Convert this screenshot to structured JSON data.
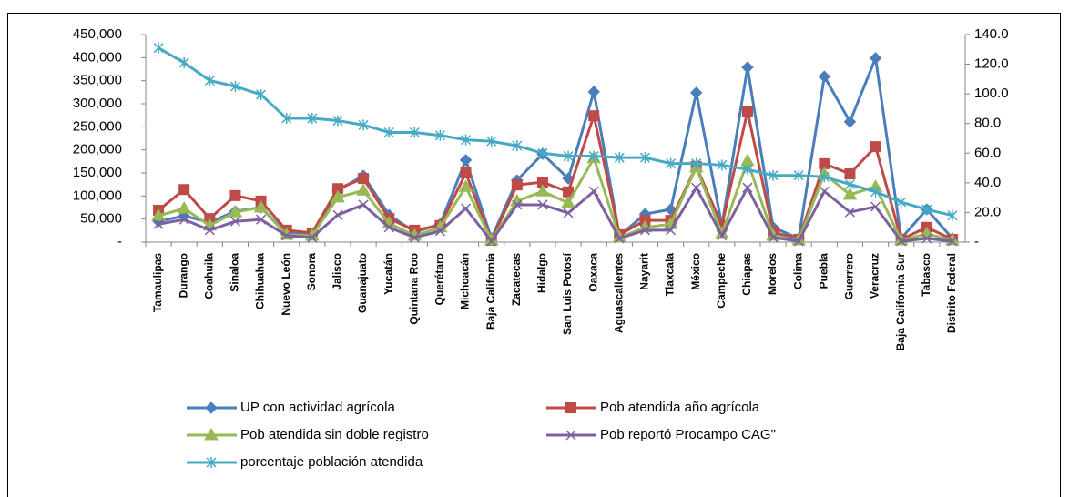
{
  "chart_data": {
    "type": "line",
    "categories": [
      "Tamaulipas",
      "Durango",
      "Coahuila",
      "Sinaloa",
      "Chihuahua",
      "Nuevo León",
      "Sonora",
      "Jalisco",
      "Guanajuato",
      "Yucatán",
      "Quintana Roo",
      "Querétaro",
      "Michoacán",
      "Baja California",
      "Zacatecas",
      "Hidalgo",
      "San Luis Potosí",
      "Oaxaca",
      "Aguascalientes",
      "Nayarit",
      "Tlaxcala",
      "México",
      "Campeche",
      "Chiapas",
      "Morelos",
      "Colima",
      "Puebla",
      "Guerrero",
      "Veracruz",
      "Baja California Sur",
      "Tabasco",
      "Distrito Federal"
    ],
    "series": [
      {
        "name": "UP con actividad agrícola",
        "color": "#4a7ebb",
        "marker": "diamond",
        "values": [
          45000,
          57000,
          43000,
          67000,
          75000,
          20000,
          16000,
          112000,
          144000,
          59000,
          22000,
          39000,
          178000,
          8000,
          134000,
          191000,
          138000,
          326000,
          14000,
          61000,
          71000,
          324000,
          36000,
          379000,
          32000,
          8000,
          359000,
          261000,
          399000,
          8000,
          71000,
          8000
        ]
      },
      {
        "name": "Pob atendida año agrícola",
        "color": "#be4b48",
        "marker": "square",
        "values": [
          69000,
          114000,
          51000,
          101000,
          89000,
          26000,
          20000,
          116000,
          138000,
          51000,
          26000,
          36000,
          150000,
          4000,
          124000,
          130000,
          109000,
          274000,
          16000,
          47000,
          47000,
          164000,
          36000,
          284000,
          22000,
          6000,
          170000,
          148000,
          207000,
          6000,
          32000,
          6000
        ]
      },
      {
        "name": "Pob atendida sin doble registro",
        "color": "#98b954",
        "marker": "triangle",
        "values": [
          57000,
          73000,
          36000,
          65000,
          75000,
          16000,
          14000,
          97000,
          112000,
          41000,
          14000,
          32000,
          120000,
          4000,
          89000,
          110000,
          85000,
          182000,
          10000,
          32000,
          39000,
          162000,
          18000,
          176000,
          14000,
          4000,
          148000,
          103000,
          120000,
          4000,
          18000,
          4000
        ]
      },
      {
        "name": "Pob reportó Procampo CAG\"",
        "color": "#7d60a0",
        "marker": "x",
        "values": [
          39000,
          49000,
          26000,
          45000,
          49000,
          14000,
          10000,
          59000,
          81000,
          32000,
          10000,
          24000,
          73000,
          2000,
          81000,
          81000,
          63000,
          110000,
          8000,
          26000,
          26000,
          118000,
          14000,
          118000,
          10000,
          2000,
          110000,
          65000,
          77000,
          2000,
          8000,
          2000
        ]
      },
      {
        "name": "porcentaje población atendida",
        "color": "#46aac5",
        "marker": "star",
        "axis": "y2",
        "values": [
          131,
          121,
          109,
          105,
          99.5,
          83.5,
          83.5,
          82,
          79,
          74,
          74,
          72,
          69,
          68,
          65,
          60,
          58,
          58,
          57,
          57,
          53,
          53,
          52,
          49,
          45,
          45,
          44,
          39,
          34,
          27,
          22,
          18
        ]
      }
    ],
    "ylim": [
      0,
      450000
    ],
    "yticks": [
      {
        "value": 0,
        "label": "-"
      },
      {
        "value": 50000,
        "label": "50,000"
      },
      {
        "value": 100000,
        "label": "100,000"
      },
      {
        "value": 150000,
        "label": "150,000"
      },
      {
        "value": 200000,
        "label": "200,000"
      },
      {
        "value": 250000,
        "label": "250,000"
      },
      {
        "value": 300000,
        "label": "300,000"
      },
      {
        "value": 350000,
        "label": "350,000"
      },
      {
        "value": 400000,
        "label": "400,000"
      },
      {
        "value": 450000,
        "label": "450,000"
      }
    ],
    "y2lim": [
      0,
      140
    ],
    "y2ticks": [
      {
        "value": 0,
        "label": "-"
      },
      {
        "value": 20,
        "label": "20.0"
      },
      {
        "value": 40,
        "label": "40.0"
      },
      {
        "value": 60,
        "label": "60.0"
      },
      {
        "value": 80,
        "label": "80.0"
      },
      {
        "value": 100,
        "label": "100.0"
      },
      {
        "value": 120,
        "label": "120.0"
      },
      {
        "value": 140,
        "label": "140.0"
      }
    ],
    "legend": "bottom",
    "grid": false
  }
}
